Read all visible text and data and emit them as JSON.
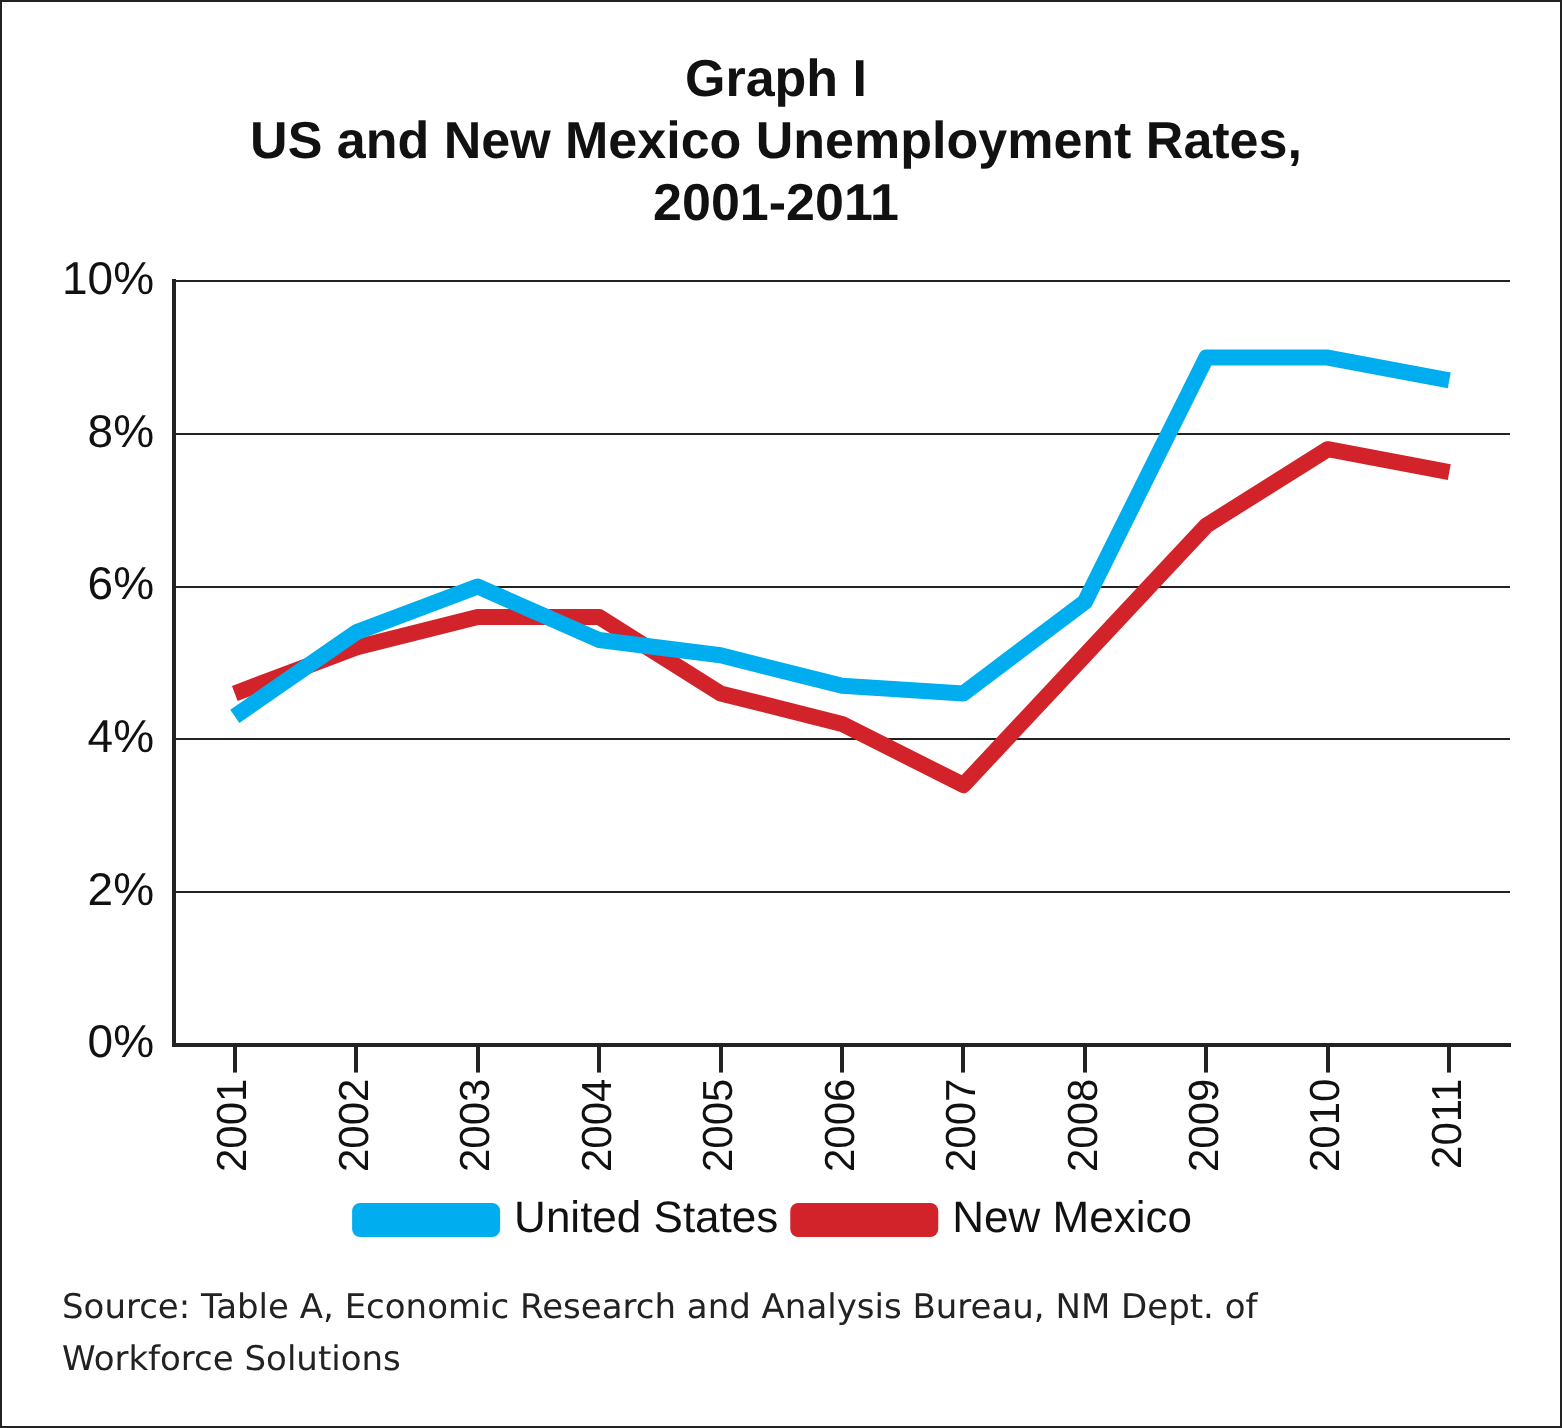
{
  "chart_data": {
    "type": "line",
    "title": [
      "Graph I",
      "US and New Mexico Unemployment Rates,",
      "2001-2011"
    ],
    "categories": [
      "2001",
      "2002",
      "2003",
      "2004",
      "2005",
      "2006",
      "2007",
      "2008",
      "2009",
      "2010",
      "2011"
    ],
    "series": [
      {
        "name": "United States",
        "color": "#00aeef",
        "values": [
          4.3,
          5.4,
          6.0,
          5.3,
          5.1,
          4.7,
          4.6,
          5.8,
          9.0,
          9.0,
          8.7
        ]
      },
      {
        "name": "New Mexico",
        "color": "#d2232a",
        "values": [
          4.6,
          5.2,
          5.6,
          5.6,
          4.6,
          4.2,
          3.4,
          5.1,
          6.8,
          7.8,
          7.5
        ]
      }
    ],
    "ylim": [
      0,
      10
    ],
    "yticks": [
      {
        "value": 0,
        "label": "0%"
      },
      {
        "value": 2,
        "label": "2%"
      },
      {
        "value": 4,
        "label": "4%"
      },
      {
        "value": 6,
        "label": "6%"
      },
      {
        "value": 8,
        "label": "8%"
      },
      {
        "value": 10,
        "label": "10%"
      }
    ],
    "grid": "y",
    "legend": "bottom",
    "marker": "none",
    "line_style": "solid",
    "annotations": [
      "Source: Table A, Economic Research and Analysis Bureau, NM Dept. of Workforce Solutions"
    ]
  }
}
